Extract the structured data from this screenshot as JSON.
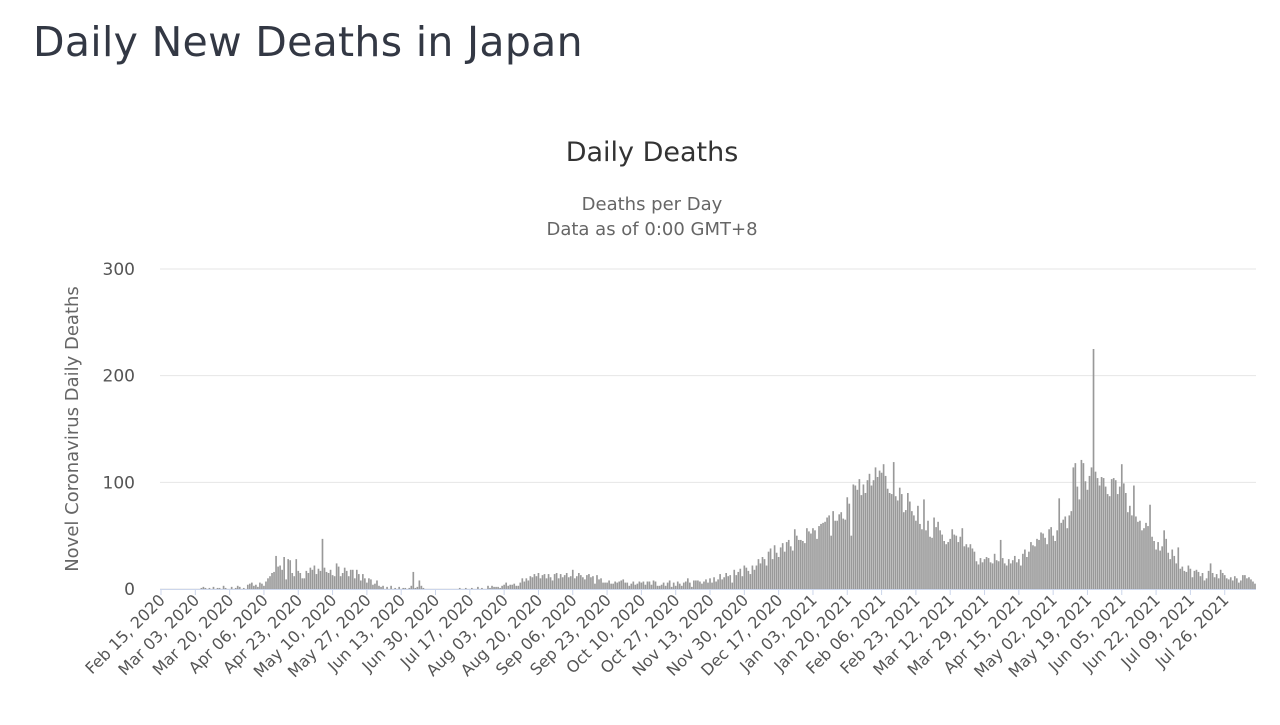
{
  "page": {
    "title": "Daily New Deaths in Japan"
  },
  "chart_data": {
    "type": "bar",
    "title": "Daily Deaths",
    "subtitle": [
      "Deaths per Day",
      "Data as of 0:00 GMT+8"
    ],
    "xlabel": "",
    "ylabel": "Novel Coronavirus Daily Deaths",
    "ylim": [
      0,
      300
    ],
    "yticks": [
      0,
      100,
      200,
      300
    ],
    "grid": true,
    "legend": "none",
    "colors": {
      "bar": "#999999",
      "grid": "#e6e6e6",
      "text": "#555555",
      "baseline": "#ccd6eb"
    },
    "x_start": "Feb 15, 2020",
    "x_end": "Aug 07, 2021",
    "xtick_labels": [
      "Feb 15, 2020",
      "Mar 03, 2020",
      "Mar 20, 2020",
      "Apr 06, 2020",
      "Apr 23, 2020",
      "May 10, 2020",
      "May 27, 2020",
      "Jun 13, 2020",
      "Jun 30, 2020",
      "Jul 17, 2020",
      "Aug 03, 2020",
      "Aug 20, 2020",
      "Sep 06, 2020",
      "Sep 23, 2020",
      "Oct 10, 2020",
      "Oct 27, 2020",
      "Nov 13, 2020",
      "Nov 30, 2020",
      "Dec 17, 2020",
      "Jan 03, 2021",
      "Jan 20, 2021",
      "Feb 06, 2021",
      "Feb 23, 2021",
      "Mar 12, 2021",
      "Mar 29, 2021",
      "Apr 15, 2021",
      "May 02, 2021",
      "May 19, 2021",
      "Jun 05, 2021",
      "Jun 22, 2021",
      "Jul 09, 2021",
      "Jul 26, 2021"
    ],
    "values": [
      0,
      0,
      0,
      0,
      0,
      0,
      0,
      0,
      0,
      0,
      0,
      0,
      0,
      0,
      0,
      0,
      0,
      0,
      0,
      0,
      1,
      2,
      1,
      0,
      1,
      0,
      2,
      0,
      1,
      1,
      0,
      3,
      1,
      0,
      0,
      2,
      0,
      1,
      3,
      2,
      0,
      1,
      0,
      4,
      5,
      6,
      3,
      4,
      2,
      6,
      5,
      3,
      7,
      10,
      12,
      15,
      16,
      31,
      21,
      22,
      18,
      30,
      9,
      28,
      27,
      15,
      12,
      28,
      17,
      15,
      10,
      10,
      17,
      15,
      20,
      18,
      22,
      14,
      19,
      17,
      47,
      20,
      16,
      15,
      18,
      13,
      12,
      24,
      21,
      12,
      15,
      20,
      17,
      12,
      18,
      18,
      10,
      18,
      14,
      8,
      14,
      10,
      6,
      10,
      9,
      4,
      5,
      8,
      3,
      2,
      3,
      0,
      2,
      0,
      3,
      0,
      1,
      0,
      2,
      0,
      1,
      1,
      0,
      1,
      3,
      16,
      1,
      2,
      8,
      3,
      1,
      0,
      0,
      0,
      0,
      0,
      0,
      0,
      0,
      0,
      0,
      0,
      0,
      0,
      0,
      0,
      0,
      0,
      1,
      0,
      0,
      1,
      0,
      0,
      1,
      0,
      0,
      2,
      0,
      1,
      0,
      0,
      3,
      1,
      3,
      2,
      2,
      2,
      1,
      3,
      4,
      6,
      3,
      4,
      4,
      5,
      3,
      3,
      6,
      10,
      7,
      10,
      8,
      12,
      11,
      14,
      12,
      15,
      10,
      13,
      14,
      10,
      14,
      11,
      8,
      14,
      15,
      10,
      14,
      11,
      13,
      15,
      11,
      12,
      18,
      10,
      12,
      15,
      13,
      11,
      9,
      13,
      14,
      11,
      12,
      5,
      13,
      9,
      10,
      6,
      6,
      6,
      8,
      5,
      5,
      7,
      6,
      7,
      8,
      9,
      6,
      6,
      3,
      5,
      7,
      4,
      5,
      7,
      6,
      7,
      4,
      7,
      7,
      4,
      8,
      7,
      3,
      3,
      4,
      6,
      3,
      6,
      8,
      2,
      6,
      3,
      7,
      5,
      3,
      6,
      7,
      10,
      6,
      2,
      8,
      8,
      8,
      7,
      5,
      7,
      9,
      6,
      10,
      6,
      11,
      7,
      9,
      14,
      9,
      11,
      15,
      12,
      13,
      6,
      18,
      13,
      16,
      19,
      12,
      22,
      20,
      17,
      14,
      22,
      18,
      22,
      28,
      24,
      30,
      28,
      22,
      35,
      38,
      28,
      41,
      34,
      30,
      39,
      43,
      35,
      44,
      46,
      40,
      36,
      56,
      50,
      46,
      46,
      45,
      43,
      57,
      54,
      52,
      57,
      55,
      47,
      59,
      61,
      62,
      63,
      67,
      69,
      50,
      73,
      64,
      64,
      70,
      72,
      66,
      65,
      86,
      80,
      50,
      98,
      97,
      93,
      103,
      88,
      98,
      90,
      102,
      108,
      97,
      102,
      114,
      105,
      111,
      109,
      117,
      106,
      94,
      90,
      89,
      119,
      87,
      83,
      95,
      89,
      72,
      74,
      90,
      82,
      73,
      69,
      64,
      78,
      61,
      56,
      84,
      55,
      64,
      49,
      48,
      67,
      58,
      63,
      55,
      51,
      45,
      42,
      44,
      47,
      56,
      51,
      50,
      44,
      49,
      57,
      40,
      42,
      39,
      42,
      38,
      35,
      26,
      23,
      29,
      25,
      28,
      30,
      29,
      25,
      24,
      33,
      27,
      26,
      46,
      29,
      24,
      22,
      28,
      24,
      27,
      31,
      25,
      28,
      22,
      33,
      37,
      30,
      35,
      44,
      41,
      40,
      47,
      46,
      53,
      52,
      48,
      42,
      56,
      58,
      50,
      45,
      55,
      85,
      62,
      65,
      68,
      57,
      69,
      73,
      114,
      118,
      96,
      84,
      121,
      118,
      101,
      93,
      106,
      114,
      225,
      110,
      104,
      97,
      105,
      104,
      96,
      89,
      87,
      103,
      104,
      102,
      89,
      96,
      117,
      99,
      90,
      72,
      78,
      69,
      97,
      68,
      63,
      64,
      55,
      57,
      62,
      59,
      79,
      49,
      45,
      37,
      44,
      36,
      40,
      55,
      47,
      34,
      28,
      37,
      31,
      24,
      39,
      19,
      21,
      17,
      16,
      22,
      19,
      11,
      17,
      18,
      16,
      12,
      15,
      8,
      10,
      17,
      24,
      15,
      11,
      14,
      10,
      18,
      15,
      13,
      10,
      9,
      11,
      8,
      12,
      10,
      6,
      8,
      13,
      13,
      10,
      11,
      9,
      7,
      5
    ]
  }
}
